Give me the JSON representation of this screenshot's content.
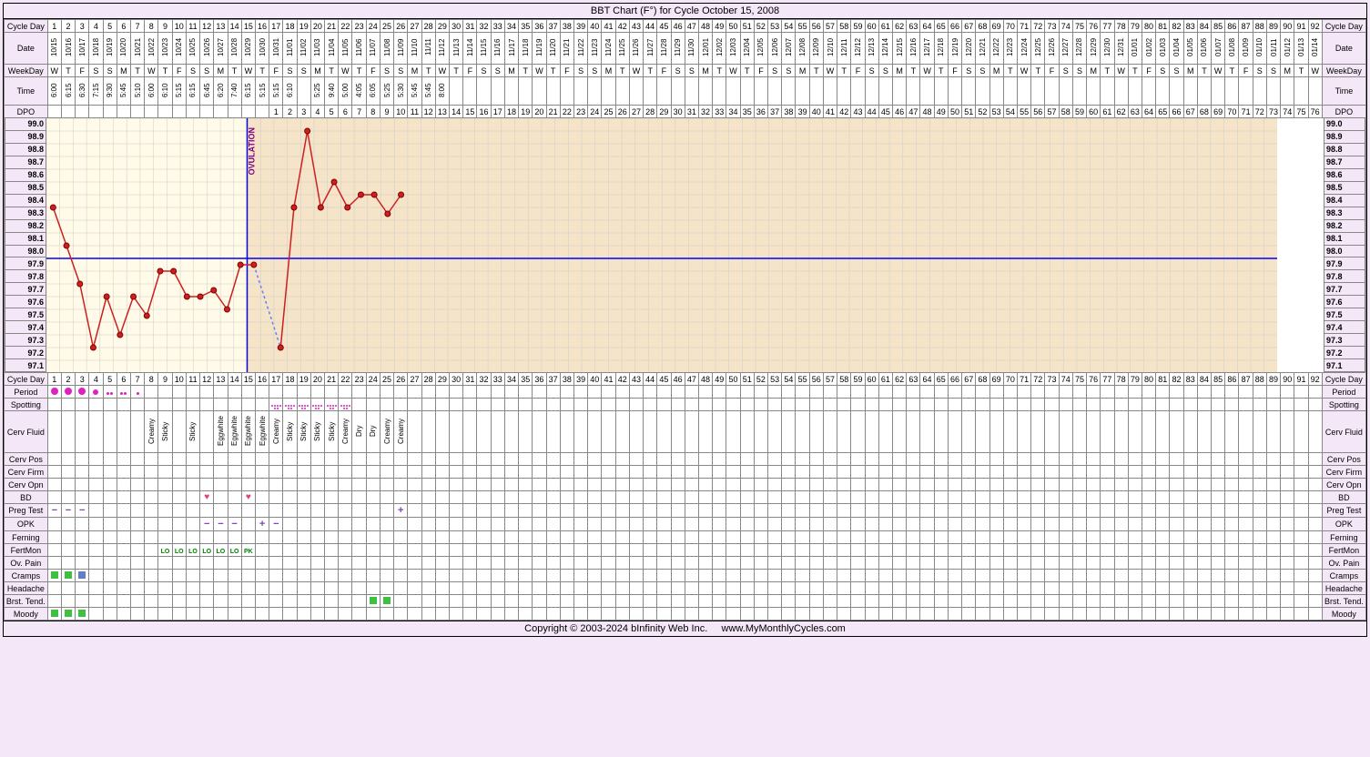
{
  "title": "BBT Chart (F°) for Cycle October 15, 2008",
  "footer": "Copyright © 2003-2024 bInfinity Web Inc.     www.MyMonthlyCycles.com",
  "totalDays": 92,
  "ovulationDay": 16,
  "coverline": 97.9,
  "dpo_start": 17,
  "rowLabels": {
    "cycleDay": "Cycle Day",
    "date": "Date",
    "weekday": "WeekDay",
    "time": "Time",
    "dpo": "DPO",
    "period": "Period",
    "spotting": "Spotting",
    "cervFluid": "Cerv Fluid",
    "cervPos": "Cerv Pos",
    "cervFirm": "Cerv Firm",
    "cervOpn": "Cerv Opn",
    "bd": "BD",
    "pregTest": "Preg Test",
    "opk": "OPK",
    "ferning": "Ferning",
    "fertMon": "FertMon",
    "ovPain": "Ov. Pain",
    "cramps": "Cramps",
    "headache": "Headache",
    "brstTend": "Brst. Tend.",
    "moody": "Moody"
  },
  "temps": {
    "y_levels": [
      "99.0",
      "98.9",
      "98.8",
      "98.7",
      "98.6",
      "98.5",
      "98.4",
      "98.3",
      "98.2",
      "98.1",
      "98.0",
      "97.9",
      "97.8",
      "97.7",
      "97.6",
      "97.5",
      "97.4",
      "97.3",
      "97.2",
      "97.1"
    ],
    "ymin": 97.0,
    "ymax": 99.0,
    "values": [
      98.3,
      98.0,
      97.7,
      97.2,
      97.6,
      97.3,
      97.6,
      97.45,
      97.8,
      97.8,
      97.6,
      97.6,
      97.65,
      97.5,
      97.85,
      97.85,
      null,
      97.2,
      98.3,
      98.9,
      98.3,
      98.5,
      98.3,
      98.4,
      98.4,
      98.25,
      98.4
    ],
    "dashed_between": [
      16,
      18
    ],
    "colors": {
      "line": "#cc2020",
      "point": "#cc2020",
      "point_stroke": "#800000",
      "coverline": "#0000ff",
      "ovline": "#0000ff",
      "ovtext": "#800080"
    },
    "bg_pre": "#fffbe8",
    "bg_post": "#f5e4c8"
  },
  "dates": [
    "10/15",
    "10/16",
    "10/17",
    "10/18",
    "10/19",
    "10/20",
    "10/21",
    "10/22",
    "10/23",
    "10/24",
    "10/25",
    "10/26",
    "10/27",
    "10/28",
    "10/29",
    "10/30",
    "10/31",
    "11/01",
    "11/02",
    "11/03",
    "11/04",
    "11/05",
    "11/06",
    "11/07",
    "11/08",
    "11/09",
    "11/10",
    "11/11",
    "11/12",
    "11/13",
    "11/14",
    "11/15",
    "11/16",
    "11/17",
    "11/18",
    "11/19",
    "11/20",
    "11/21",
    "11/22",
    "11/23",
    "11/24",
    "11/25",
    "11/26",
    "11/27",
    "11/28",
    "11/29",
    "11/30",
    "12/01",
    "12/02",
    "12/03",
    "12/04",
    "12/05",
    "12/06",
    "12/07",
    "12/08",
    "12/09",
    "12/10",
    "12/11",
    "12/12",
    "12/13",
    "12/14",
    "12/15",
    "12/16",
    "12/17",
    "12/18",
    "12/19",
    "12/20",
    "12/21",
    "12/22",
    "12/23",
    "12/24",
    "12/25",
    "12/26",
    "12/27",
    "12/28",
    "12/29",
    "12/30",
    "12/31",
    "01/01",
    "01/02",
    "01/03",
    "01/04",
    "01/05",
    "01/06",
    "01/07",
    "01/08",
    "01/09",
    "01/10",
    "01/11",
    "01/12",
    "01/13",
    "01/14"
  ],
  "weekdays": [
    "W",
    "T",
    "F",
    "S",
    "S",
    "M",
    "T",
    "W",
    "T",
    "F",
    "S",
    "S",
    "M",
    "T",
    "W",
    "T",
    "F",
    "S",
    "S",
    "M",
    "T",
    "W",
    "T",
    "F",
    "S",
    "S",
    "M",
    "T",
    "W",
    "T",
    "F",
    "S",
    "S",
    "M",
    "T",
    "W",
    "T",
    "F",
    "S",
    "S",
    "M",
    "T",
    "W",
    "T",
    "F",
    "S",
    "S",
    "M",
    "T",
    "W",
    "T",
    "F",
    "S",
    "S",
    "M",
    "T",
    "W",
    "T",
    "F",
    "S",
    "S",
    "M",
    "T",
    "W",
    "T",
    "F",
    "S",
    "S",
    "M",
    "T",
    "W",
    "T",
    "F",
    "S",
    "S",
    "M",
    "T",
    "W",
    "T",
    "F",
    "S",
    "S",
    "M",
    "T",
    "W",
    "T",
    "F",
    "S",
    "S",
    "M",
    "T",
    "W"
  ],
  "times": [
    "6:00",
    "6:15",
    "6:30",
    "7:15",
    "9:30",
    "5:45",
    "5:10",
    "6:00",
    "6:10",
    "5:15",
    "6:15",
    "6:45",
    "6:20",
    "7:40",
    "6:15",
    "5:15",
    "5:15",
    "6:10",
    "",
    "5:25",
    "9:40",
    "5:00",
    "4:05",
    "6:05",
    "5:25",
    "5:30",
    "5:45",
    "5:45",
    "8:00"
  ],
  "period": {
    "1": "lg",
    "2": "lg",
    "3": "lg",
    "4": "md",
    "5": "sm",
    "6": "sm",
    "7": "vsm"
  },
  "spotting": {
    "17": 1,
    "18": 1,
    "19": 1,
    "20": 1,
    "21": 1,
    "22": 1
  },
  "cervFluid": {
    "8": "Creamy",
    "9": "Sticky",
    "10": "",
    "11": "Sticky",
    "12": "",
    "13": "Eggwhite",
    "14": "Eggwhite",
    "15": "Eggwhite",
    "16": "Eggwhite",
    "17": "Creamy",
    "18": "Sticky",
    "19": "Sticky",
    "20": "Sticky",
    "21": "Sticky",
    "22": "Creamy",
    "23": "Dry",
    "24": "Dry",
    "25": "Creamy",
    "26": "Creamy"
  },
  "bd": {
    "12": 1,
    "15": 1
  },
  "pregTest": {
    "1": "-",
    "2": "-",
    "3": "-",
    "26": "+"
  },
  "opk": {
    "12": "-",
    "13": "-",
    "14": "-",
    "16": "+",
    "17": "-"
  },
  "fertMon": {
    "9": "LO",
    "10": "LO",
    "11": "LO",
    "12": "LO",
    "13": "LO",
    "14": "LO",
    "15": "PK"
  },
  "cramps": {
    "1": "#40c040",
    "2": "#40c040",
    "3": "#6080c0"
  },
  "brstTend": {
    "24": 1,
    "25": 1
  },
  "moody": {
    "1": 1,
    "2": 1,
    "3": 1
  }
}
